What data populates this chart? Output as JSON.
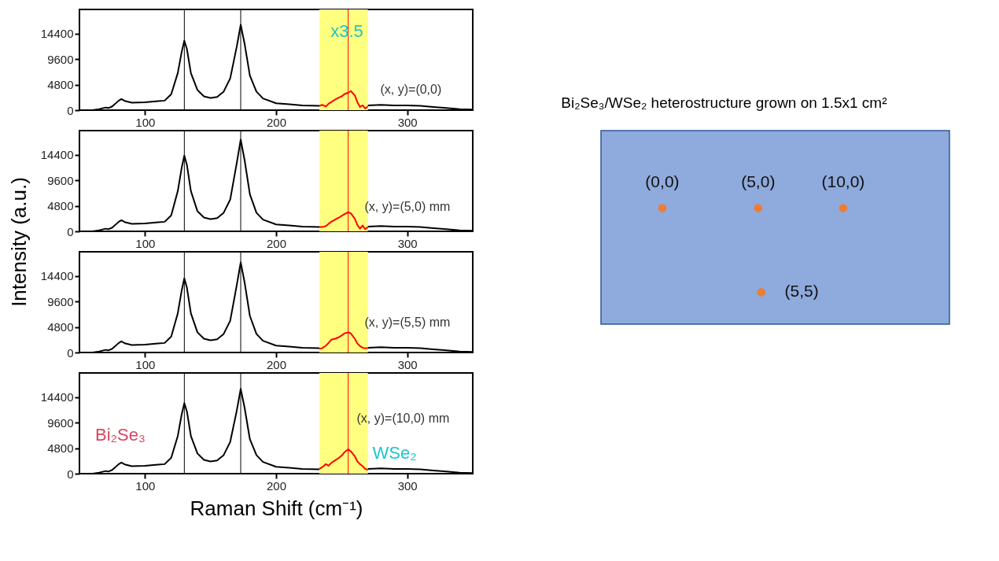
{
  "chart_data": [
    {
      "type": "line",
      "xlim": [
        50,
        350
      ],
      "xticks": [
        100,
        200,
        300
      ],
      "ylim": [
        0,
        19000
      ],
      "yticks": [
        0,
        4800,
        9600,
        14400
      ],
      "series": [
        {
          "color": "#000000",
          "x": [
            50,
            60,
            65,
            70,
            72,
            75,
            80,
            82,
            85,
            90,
            100,
            110,
            115,
            120,
            125,
            128,
            130,
            132,
            135,
            140,
            145,
            150,
            155,
            160,
            165,
            170,
            173,
            176,
            180,
            185,
            190,
            200,
            210,
            220,
            233,
            250,
            270,
            280,
            290,
            300,
            310,
            320,
            330,
            340,
            350
          ],
          "values": [
            0,
            0,
            200,
            500,
            400,
            700,
            1800,
            2100,
            1700,
            1400,
            1500,
            1700,
            1800,
            3000,
            7000,
            11000,
            13100,
            11500,
            7000,
            3800,
            2600,
            2300,
            2500,
            3500,
            6000,
            12000,
            16100,
            12500,
            6500,
            3500,
            2200,
            1300,
            1100,
            900,
            800,
            null,
            900,
            1000,
            900,
            900,
            800,
            600,
            400,
            200,
            100
          ]
        },
        {
          "color": "#ff0000",
          "x": [
            233,
            235,
            238,
            240,
            242,
            245,
            248,
            250,
            252,
            255,
            257,
            260,
            262,
            264,
            266,
            268,
            270
          ],
          "values": [
            800,
            1000,
            700,
            1200,
            1500,
            2000,
            2400,
            2600,
            3000,
            3300,
            3600,
            2800,
            1500,
            600,
            900,
            300,
            700
          ]
        }
      ],
      "ref_lines": [
        {
          "axis": "x",
          "value": 130,
          "color": "#000000"
        },
        {
          "axis": "x",
          "value": 173,
          "color": "#000000"
        },
        {
          "axis": "x",
          "value": 255,
          "color": "#ff0000"
        }
      ],
      "bands": [
        {
          "axis": "x",
          "from": 233,
          "to": 270,
          "color": "#ffff80"
        }
      ],
      "annotations": [
        "x3.5",
        "(x, y)=(0,0)"
      ]
    },
    {
      "type": "line",
      "ylabel": "Intensity (a.u.)",
      "xlim": [
        50,
        350
      ],
      "xticks": [
        100,
        200,
        300
      ],
      "ylim": [
        0,
        19000
      ],
      "yticks": [
        0,
        4800,
        9600,
        14400
      ],
      "series": [
        {
          "color": "#000000",
          "x": [
            50,
            60,
            65,
            70,
            72,
            75,
            80,
            82,
            85,
            90,
            100,
            110,
            115,
            120,
            125,
            128,
            130,
            132,
            135,
            140,
            145,
            150,
            155,
            160,
            165,
            170,
            173,
            176,
            180,
            185,
            190,
            200,
            210,
            220,
            233,
            250,
            270,
            280,
            290,
            300,
            310,
            320,
            330,
            340,
            350
          ],
          "values": [
            0,
            0,
            200,
            500,
            400,
            700,
            1800,
            2100,
            1700,
            1400,
            1500,
            1700,
            1800,
            3000,
            7600,
            12000,
            14300,
            12500,
            7600,
            3800,
            2600,
            2300,
            2500,
            3500,
            6000,
            12900,
            17300,
            13400,
            7000,
            3500,
            2200,
            1300,
            1100,
            900,
            800,
            null,
            900,
            1000,
            900,
            900,
            800,
            600,
            400,
            200,
            100
          ]
        },
        {
          "color": "#ff0000",
          "x": [
            233,
            235,
            238,
            240,
            242,
            245,
            248,
            250,
            252,
            255,
            257,
            260,
            262,
            264,
            266,
            268,
            270
          ],
          "values": [
            800,
            800,
            1000,
            1400,
            1800,
            2200,
            2600,
            2900,
            3200,
            3600,
            3400,
            2400,
            1200,
            500,
            1100,
            400,
            800
          ]
        }
      ],
      "ref_lines": [
        {
          "axis": "x",
          "value": 130,
          "color": "#000000"
        },
        {
          "axis": "x",
          "value": 173,
          "color": "#000000"
        },
        {
          "axis": "x",
          "value": 255,
          "color": "#ff0000"
        }
      ],
      "bands": [
        {
          "axis": "x",
          "from": 233,
          "to": 270,
          "color": "#ffff80"
        }
      ],
      "annotations": [
        "(x, y)=(5,0) mm"
      ]
    },
    {
      "type": "line",
      "xlim": [
        50,
        350
      ],
      "xticks": [
        100,
        200,
        300
      ],
      "ylim": [
        0,
        19000
      ],
      "yticks": [
        0,
        4800,
        9600,
        14400
      ],
      "series": [
        {
          "color": "#000000",
          "x": [
            50,
            60,
            65,
            70,
            72,
            75,
            80,
            82,
            85,
            90,
            100,
            110,
            115,
            120,
            125,
            128,
            130,
            132,
            135,
            140,
            145,
            150,
            155,
            160,
            165,
            170,
            173,
            176,
            180,
            185,
            190,
            200,
            210,
            220,
            233,
            250,
            270,
            280,
            290,
            300,
            310,
            320,
            330,
            340,
            350
          ],
          "values": [
            0,
            0,
            200,
            500,
            400,
            700,
            1800,
            2100,
            1700,
            1400,
            1500,
            1700,
            1800,
            3000,
            7400,
            11700,
            14000,
            12200,
            7400,
            3800,
            2600,
            2300,
            2500,
            3500,
            6000,
            12700,
            17000,
            13200,
            6900,
            3500,
            2200,
            1300,
            1100,
            900,
            800,
            null,
            900,
            1000,
            900,
            900,
            800,
            600,
            400,
            200,
            100
          ]
        },
        {
          "color": "#ff0000",
          "x": [
            233,
            235,
            238,
            240,
            242,
            245,
            248,
            250,
            252,
            255,
            257,
            260,
            262,
            264,
            266,
            268,
            270
          ],
          "values": [
            700,
            800,
            1300,
            1800,
            2400,
            2600,
            2900,
            3200,
            3600,
            3800,
            3600,
            2600,
            1700,
            1200,
            900,
            800,
            800
          ]
        }
      ],
      "ref_lines": [
        {
          "axis": "x",
          "value": 130,
          "color": "#000000"
        },
        {
          "axis": "x",
          "value": 173,
          "color": "#000000"
        },
        {
          "axis": "x",
          "value": 255,
          "color": "#ff0000"
        }
      ],
      "bands": [
        {
          "axis": "x",
          "from": 233,
          "to": 270,
          "color": "#ffff80"
        }
      ],
      "annotations": [
        "(x, y)=(5,5) mm"
      ]
    },
    {
      "type": "line",
      "xlabel": "Raman Shift (cm⁻¹)",
      "xlim": [
        50,
        350
      ],
      "xticks": [
        100,
        200,
        300
      ],
      "ylim": [
        0,
        19000
      ],
      "yticks": [
        0,
        4800,
        9600,
        14400
      ],
      "series": [
        {
          "color": "#000000",
          "x": [
            50,
            60,
            65,
            70,
            72,
            75,
            80,
            82,
            85,
            90,
            100,
            110,
            115,
            120,
            125,
            128,
            130,
            132,
            135,
            140,
            145,
            150,
            155,
            160,
            165,
            170,
            173,
            176,
            180,
            185,
            190,
            200,
            210,
            220,
            233,
            250,
            270,
            280,
            290,
            300,
            310,
            320,
            330,
            340,
            350
          ],
          "values": [
            0,
            0,
            200,
            500,
            400,
            700,
            1800,
            2100,
            1700,
            1400,
            1500,
            1700,
            1800,
            3000,
            7100,
            11200,
            13300,
            11700,
            7100,
            3800,
            2600,
            2300,
            2500,
            3500,
            6000,
            11900,
            16000,
            12400,
            6500,
            3500,
            2200,
            1300,
            1100,
            900,
            800,
            null,
            900,
            1000,
            900,
            900,
            800,
            600,
            400,
            200,
            100
          ]
        },
        {
          "color": "#ff0000",
          "x": [
            233,
            235,
            238,
            240,
            242,
            245,
            248,
            250,
            252,
            255,
            257,
            260,
            262,
            264,
            266,
            268,
            270
          ],
          "values": [
            900,
            1200,
            1800,
            1500,
            2000,
            2500,
            3000,
            3400,
            4000,
            4600,
            4200,
            3300,
            2300,
            1800,
            1400,
            900,
            700
          ]
        }
      ],
      "ref_lines": [
        {
          "axis": "x",
          "value": 130,
          "color": "#000000"
        },
        {
          "axis": "x",
          "value": 173,
          "color": "#000000"
        },
        {
          "axis": "x",
          "value": 255,
          "color": "#ff0000"
        }
      ],
      "bands": [
        {
          "axis": "x",
          "from": 233,
          "to": 270,
          "color": "#ffff80"
        }
      ],
      "annotations": [
        "(x, y)=(10,0) mm",
        "Bi₂Se₃",
        "WSe₂"
      ]
    },
    {
      "type": "other",
      "title": "Bi₂Se₃/WSe₂ heterostructure grown on 1.5x1 cm²",
      "annotations": [
        "(0,0)",
        "(5,0)",
        "(10,0)",
        "(5,5)"
      ]
    }
  ]
}
